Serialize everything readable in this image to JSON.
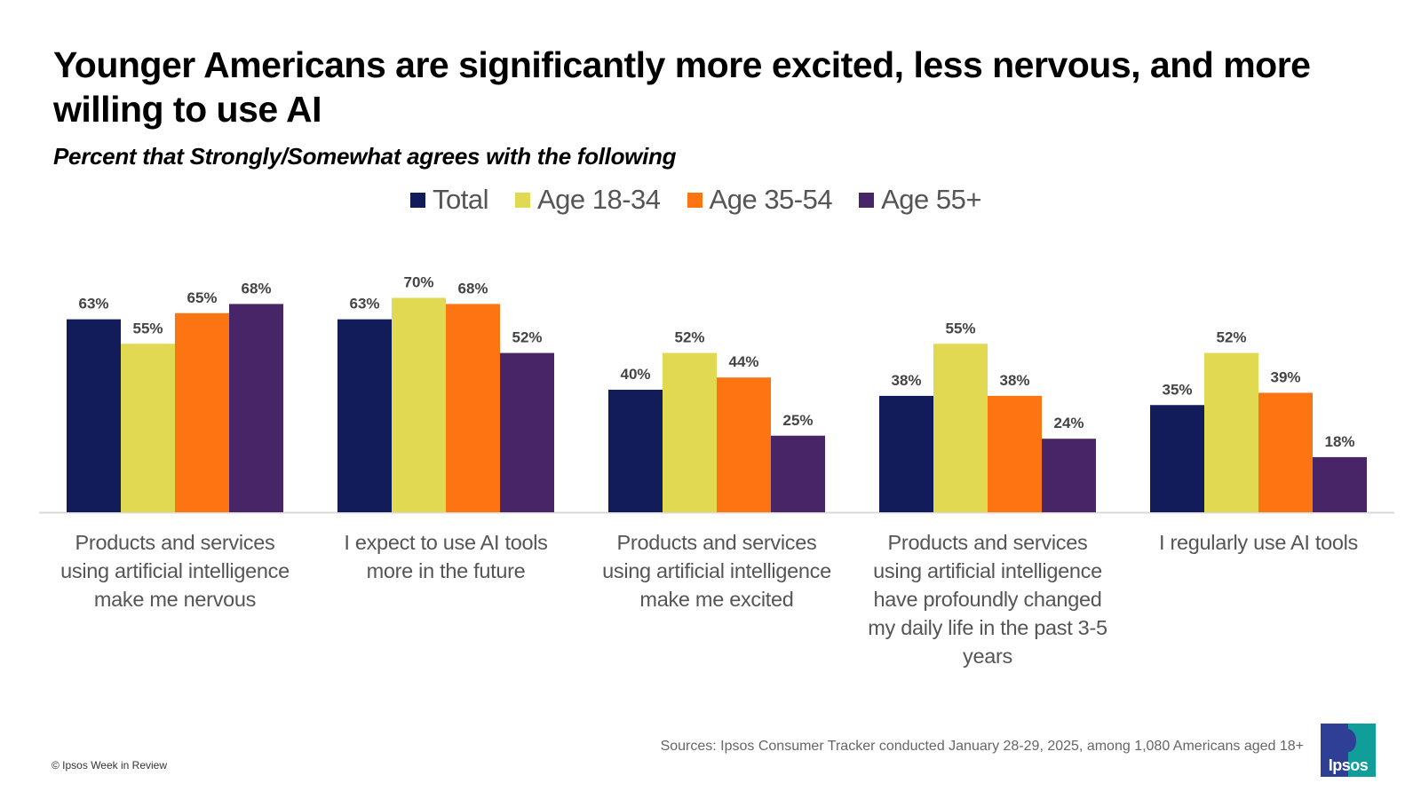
{
  "header": {
    "title": "Younger Americans are significantly more excited, less nervous, and more willing to use AI",
    "subtitle": "Percent that Strongly/Somewhat agrees with the following"
  },
  "footer": {
    "source": "Sources:  Ipsos Consumer Tracker conducted January 28-29, 2025, among 1,080 Americans aged 18+",
    "copyright": "© Ipsos Week in Review",
    "logo_text": "Ipsos",
    "logo_colors": {
      "left": "#2e3f95",
      "right": "#0f9e9a"
    }
  },
  "chart_data": {
    "type": "bar",
    "title": "Younger Americans are significantly more excited, less nervous, and more willing to use AI",
    "subtitle": "Percent that Strongly/Somewhat agrees with the following",
    "xlabel": "",
    "ylabel": "",
    "ylim": [
      0,
      100
    ],
    "grid": false,
    "legend_position": "top-center",
    "value_format": "percent",
    "categories": [
      "Products and services using artificial intelligence make me nervous",
      "I expect to use AI tools more in the future",
      "Products and services using artificial intelligence make me excited",
      "Products and services using artificial intelligence have profoundly changed my daily life in the past 3-5 years",
      "I regularly use AI tools"
    ],
    "series": [
      {
        "name": "Total",
        "color": "#131c5a",
        "values": [
          63,
          63,
          40,
          38,
          35
        ]
      },
      {
        "name": "Age 18-34",
        "color": "#e0d951",
        "values": [
          55,
          70,
          52,
          55,
          52
        ]
      },
      {
        "name": "Age 35-54",
        "color": "#fd7512",
        "values": [
          65,
          68,
          44,
          38,
          39
        ]
      },
      {
        "name": "Age 55+",
        "color": "#482566",
        "values": [
          68,
          52,
          25,
          24,
          18
        ]
      }
    ],
    "axis_line_color": "#d9d9d9"
  }
}
